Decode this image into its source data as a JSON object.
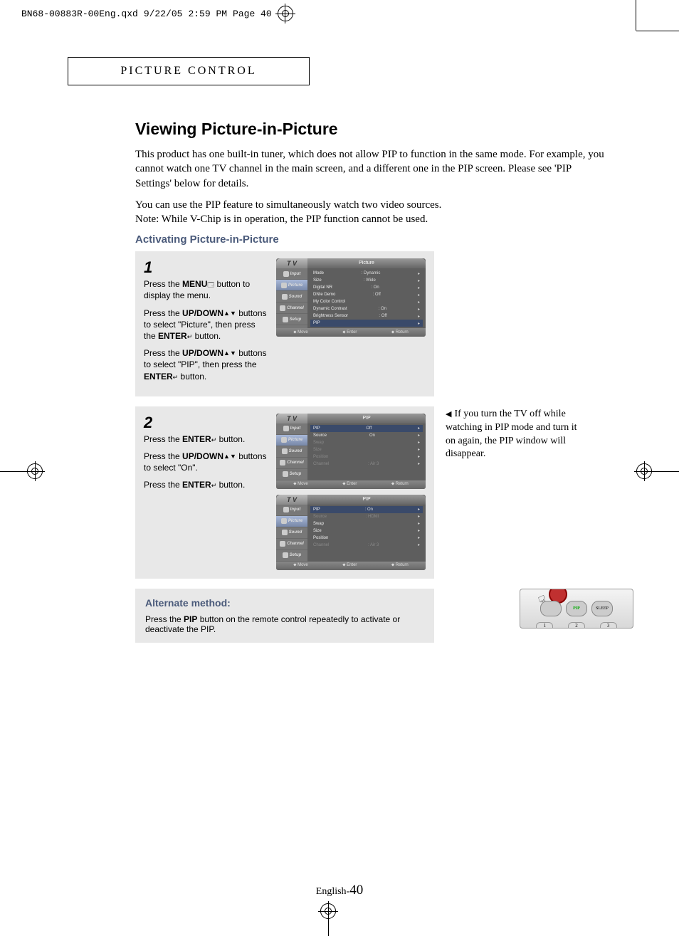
{
  "print_header": {
    "file": "BN68-00883R-00Eng.qxd",
    "date": "9/22/05",
    "time": "2:59 PM",
    "page": "Page 40"
  },
  "section_title": "PICTURE CONTROL",
  "heading": "Viewing Picture-in-Picture",
  "intro1": "This product has one built-in tuner, which does not allow PIP to function in the same mode. For example, you cannot watch one TV channel in the main screen, and a different one in the PIP screen. Please see 'PIP Settings' below for details.",
  "intro2": "You can use the PIP feature to simultaneously watch two video sources.",
  "intro3": "Note: While V-Chip is in operation, the PIP function cannot be used.",
  "subheading": "Activating Picture-in-Picture",
  "step1": {
    "num": "1",
    "p1_a": "Press the ",
    "p1_b": "MENU",
    "p1_c": " button to display the menu.",
    "p2_a": "Press the ",
    "p2_b": "UP/DOWN",
    "p2_c": " buttons to select \"Picture\", then press the ",
    "p2_d": "ENTER",
    "p2_e": " button.",
    "p3_a": "Press the ",
    "p3_b": "UP/DOWN",
    "p3_c": " buttons to select \"PIP\", then press the ",
    "p3_d": "ENTER",
    "p3_e": " button."
  },
  "step2": {
    "num": "2",
    "p1_a": "Press the ",
    "p1_b": "ENTER",
    "p1_c": " button.",
    "p2_a": "Press the ",
    "p2_b": "UP/DOWN",
    "p2_c": " buttons to select \"On\".",
    "p3_a": "Press the ",
    "p3_b": "ENTER",
    "p3_c": " button."
  },
  "side_note": "If you turn the TV off while watching in PIP mode and turn it on again, the PIP window will disappear.",
  "alternate": {
    "title": "Alternate method:",
    "text_a": "Press the ",
    "text_b": "PIP",
    "text_c": " button on the remote control repeatedly to activate or deactivate the PIP."
  },
  "footer": {
    "lang": "English-",
    "num": "40"
  },
  "menu_common": {
    "tv": "T V",
    "side": [
      "Input",
      "Picture",
      "Sound",
      "Channel",
      "Setup"
    ],
    "footer": [
      "Move",
      "Enter",
      "Return"
    ]
  },
  "menu1": {
    "title": "Picture",
    "rows": [
      {
        "lbl": "Mode",
        "val": ": Dynamic"
      },
      {
        "lbl": "Size",
        "val": ": Wide"
      },
      {
        "lbl": "Digital NR",
        "val": ": On"
      },
      {
        "lbl": "DNIe Demo",
        "val": ": Off"
      },
      {
        "lbl": "My Color Control",
        "val": ""
      },
      {
        "lbl": "Dynamic Contrast",
        "val": ": On"
      },
      {
        "lbl": "Brightness Sensor",
        "val": ": Off"
      },
      {
        "lbl": "PIP",
        "val": "",
        "hl": true
      }
    ]
  },
  "menu2a": {
    "title": "PIP",
    "rows": [
      {
        "lbl": "PIP",
        "val": "Off",
        "hl": true
      },
      {
        "lbl": "Source",
        "val": "On",
        "dim": false,
        "hl2": true
      },
      {
        "lbl": "Swap",
        "val": "",
        "dim": true
      },
      {
        "lbl": "Size",
        "val": "",
        "dim": true
      },
      {
        "lbl": "Position",
        "val": "",
        "dim": true
      },
      {
        "lbl": "Channel",
        "val": ": Air   3",
        "dim": true
      }
    ]
  },
  "menu2b": {
    "title": "PIP",
    "rows": [
      {
        "lbl": "PIP",
        "val": ": On",
        "hl": true
      },
      {
        "lbl": "Source",
        "val": ": HDMI",
        "dim": true
      },
      {
        "lbl": "Swap",
        "val": ""
      },
      {
        "lbl": "Size",
        "val": ""
      },
      {
        "lbl": "Position",
        "val": ""
      },
      {
        "lbl": "Channel",
        "val": ": Air   3",
        "dim": true
      }
    ]
  },
  "remote": {
    "pip": "PIP",
    "sleep": "SLEEP",
    "n1": "1",
    "n2": "2",
    "n3": "3"
  },
  "colors": {
    "box_bg": "#e8e8e8",
    "accent": "#4a5a7a",
    "menu_bg": "#6a6a6a"
  }
}
